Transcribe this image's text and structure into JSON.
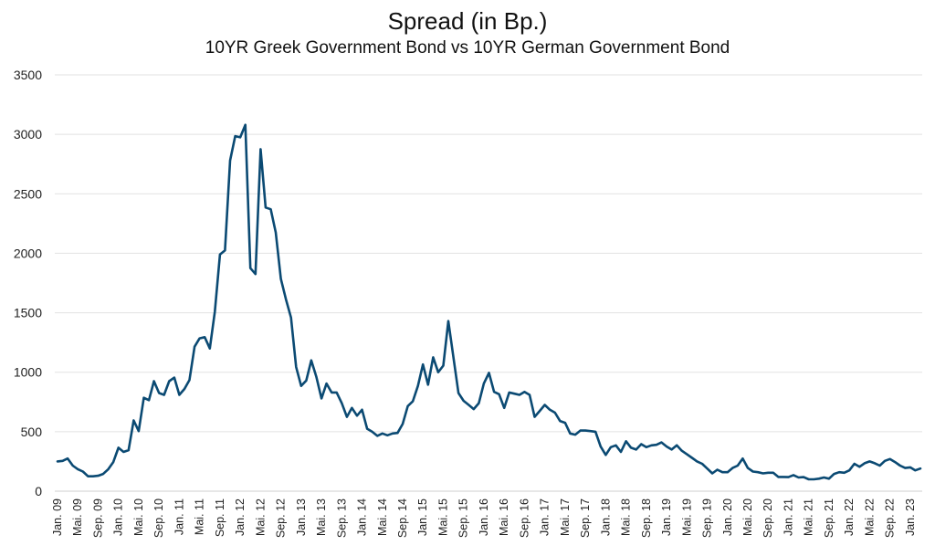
{
  "chart_data": {
    "type": "line",
    "title": "Spread (in Bp.)",
    "subtitle": "10YR Greek Government Bond vs 10YR German Government Bond",
    "xlabel": "",
    "ylabel": "",
    "ylim": [
      0,
      3500
    ],
    "yticks": [
      0,
      500,
      1000,
      1500,
      2000,
      2500,
      3000,
      3500
    ],
    "grid": true,
    "line_color": "#0b4a73",
    "x_tick_labels": [
      "Jan. 09",
      "Mai. 09",
      "Sep. 09",
      "Jan. 10",
      "Mai. 10",
      "Sep. 10",
      "Jan. 11",
      "Mai. 11",
      "Sep. 11",
      "Jan. 12",
      "Mai. 12",
      "Sep. 12",
      "Jan. 13",
      "Mai. 13",
      "Sep. 13",
      "Jan. 14",
      "Mai. 14",
      "Sep. 14",
      "Jan. 15",
      "Mai. 15",
      "Sep. 15",
      "Jan. 16",
      "Mai. 16",
      "Sep. 16",
      "Jan. 17",
      "Mai. 17",
      "Sep. 17",
      "Jan. 18",
      "Mai. 18",
      "Sep. 18",
      "Jan. 19",
      "Mai. 19",
      "Sep. 19",
      "Jan. 20",
      "Mai. 20",
      "Sep. 20",
      "Jan. 21",
      "Mai. 21",
      "Sep. 21",
      "Jan. 22",
      "Mai. 22",
      "Sep. 22",
      "Jan. 23"
    ],
    "series": [
      {
        "name": "Spread",
        "start": "Jan. 09",
        "frequency": "monthly",
        "values": [
          250,
          255,
          275,
          215,
          185,
          165,
          125,
          125,
          130,
          145,
          185,
          245,
          365,
          330,
          345,
          595,
          505,
          785,
          765,
          925,
          825,
          810,
          925,
          955,
          810,
          860,
          935,
          1215,
          1285,
          1295,
          1200,
          1510,
          1990,
          2025,
          2780,
          2985,
          2975,
          3080,
          1875,
          1825,
          2875,
          2385,
          2370,
          2175,
          1785,
          1615,
          1460,
          1045,
          885,
          930,
          1100,
          960,
          780,
          905,
          830,
          830,
          740,
          625,
          700,
          635,
          685,
          525,
          500,
          465,
          485,
          470,
          485,
          490,
          565,
          715,
          755,
          885,
          1065,
          895,
          1125,
          1000,
          1055,
          1430,
          1125,
          825,
          760,
          725,
          690,
          740,
          905,
          995,
          835,
          815,
          700,
          830,
          820,
          810,
          835,
          810,
          625,
          675,
          725,
          685,
          660,
          590,
          575,
          485,
          475,
          510,
          510,
          505,
          500,
          375,
          305,
          370,
          385,
          330,
          420,
          365,
          350,
          395,
          370,
          385,
          390,
          410,
          375,
          350,
          385,
          340,
          310,
          280,
          250,
          230,
          190,
          150,
          180,
          160,
          160,
          195,
          215,
          275,
          195,
          165,
          160,
          150,
          155,
          155,
          120,
          120,
          118,
          135,
          115,
          118,
          100,
          100,
          105,
          115,
          105,
          145,
          160,
          155,
          175,
          230,
          205,
          235,
          250,
          235,
          215,
          255,
          270,
          245,
          215,
          195,
          200,
          175,
          190
        ]
      }
    ]
  }
}
